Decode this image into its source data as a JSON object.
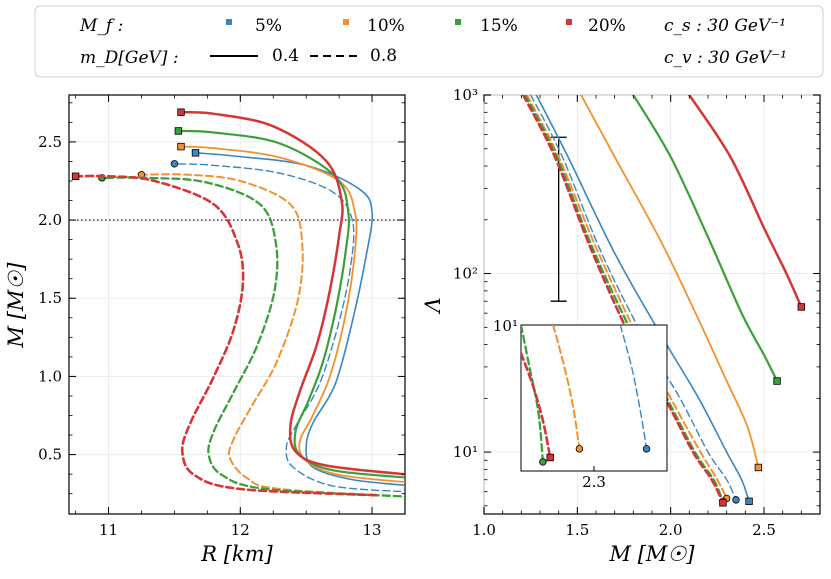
{
  "legend": {
    "mf_label": "M_f :",
    "md_label": "m_D[GeV] :",
    "mf_entries": [
      {
        "label": "5%",
        "color": "#3a86c3"
      },
      {
        "label": "10%",
        "color": "#f4912d"
      },
      {
        "label": "15%",
        "color": "#3aa13a"
      },
      {
        "label": "20%",
        "color": "#d53636"
      }
    ],
    "md_entries": [
      {
        "label": "0.4",
        "style": "solid"
      },
      {
        "label": "0.8",
        "style": "dashed"
      }
    ],
    "cs_label": "c_s : 30 GeV⁻¹",
    "cv_label": "c_v : 30 GeV⁻¹"
  },
  "chart_data": [
    {
      "type": "line",
      "xlabel": "R [km]",
      "ylabel": "M [M☉]",
      "xlim": [
        10.7,
        13.25
      ],
      "ylim": [
        0.12,
        2.8
      ],
      "xticks": [
        "11",
        "12",
        "13"
      ],
      "yticks": [
        "0.5",
        "1.0",
        "1.5",
        "2.0",
        "2.5"
      ],
      "reference_line": {
        "y": 2.0,
        "style": "dotted"
      },
      "series": [
        {
          "color": "#3a86c3",
          "style": "solid",
          "width": 1.6,
          "marker": "square",
          "points": [
            [
              13.3,
              0.3
            ],
            [
              12.85,
              0.34
            ],
            [
              12.55,
              0.42
            ],
            [
              12.5,
              0.55
            ],
            [
              12.55,
              0.7
            ],
            [
              12.72,
              0.95
            ],
            [
              12.85,
              1.35
            ],
            [
              12.95,
              1.75
            ],
            [
              13.0,
              2.05
            ],
            [
              12.9,
              2.2
            ],
            [
              12.5,
              2.35
            ],
            [
              11.95,
              2.41
            ],
            [
              11.66,
              2.43
            ]
          ]
        },
        {
          "color": "#3a86c3",
          "style": "dashed",
          "width": 1.4,
          "marker": "circle",
          "points": [
            [
              13.3,
              0.26
            ],
            [
              12.7,
              0.3
            ],
            [
              12.4,
              0.42
            ],
            [
              12.35,
              0.55
            ],
            [
              12.42,
              0.68
            ],
            [
              12.6,
              0.95
            ],
            [
              12.75,
              1.35
            ],
            [
              12.84,
              1.72
            ],
            [
              12.85,
              2.0
            ],
            [
              12.7,
              2.18
            ],
            [
              12.3,
              2.3
            ],
            [
              11.8,
              2.35
            ],
            [
              11.5,
              2.36
            ]
          ]
        },
        {
          "color": "#f4912d",
          "style": "solid",
          "width": 1.8,
          "marker": "square",
          "points": [
            [
              13.3,
              0.32
            ],
            [
              12.75,
              0.37
            ],
            [
              12.5,
              0.46
            ],
            [
              12.45,
              0.58
            ],
            [
              12.55,
              0.75
            ],
            [
              12.68,
              1.0
            ],
            [
              12.8,
              1.4
            ],
            [
              12.87,
              1.8
            ],
            [
              12.87,
              2.05
            ],
            [
              12.75,
              2.25
            ],
            [
              12.3,
              2.4
            ],
            [
              11.8,
              2.46
            ],
            [
              11.55,
              2.47
            ]
          ]
        },
        {
          "color": "#f4912d",
          "style": "dashed",
          "width": 2.0,
          "marker": "circle",
          "points": [
            [
              13.3,
              0.23
            ],
            [
              12.3,
              0.28
            ],
            [
              12.05,
              0.35
            ],
            [
              11.92,
              0.48
            ],
            [
              11.95,
              0.6
            ],
            [
              12.08,
              0.8
            ],
            [
              12.28,
              1.1
            ],
            [
              12.44,
              1.5
            ],
            [
              12.47,
              1.85
            ],
            [
              12.38,
              2.1
            ],
            [
              12.0,
              2.25
            ],
            [
              11.6,
              2.29
            ],
            [
              11.25,
              2.29
            ]
          ]
        },
        {
          "color": "#3aa13a",
          "style": "solid",
          "width": 2.2,
          "marker": "square",
          "points": [
            [
              13.3,
              0.35
            ],
            [
              12.7,
              0.4
            ],
            [
              12.45,
              0.5
            ],
            [
              12.42,
              0.65
            ],
            [
              12.52,
              0.85
            ],
            [
              12.63,
              1.1
            ],
            [
              12.73,
              1.45
            ],
            [
              12.8,
              1.8
            ],
            [
              12.82,
              2.05
            ],
            [
              12.72,
              2.28
            ],
            [
              12.3,
              2.49
            ],
            [
              11.8,
              2.56
            ],
            [
              11.53,
              2.57
            ]
          ]
        },
        {
          "color": "#3aa13a",
          "style": "dashed",
          "width": 2.3,
          "marker": "circle",
          "points": [
            [
              13.3,
              0.23
            ],
            [
              12.2,
              0.28
            ],
            [
              11.86,
              0.37
            ],
            [
              11.76,
              0.5
            ],
            [
              11.8,
              0.65
            ],
            [
              11.95,
              0.9
            ],
            [
              12.13,
              1.2
            ],
            [
              12.26,
              1.55
            ],
            [
              12.27,
              1.85
            ],
            [
              12.15,
              2.1
            ],
            [
              11.75,
              2.24
            ],
            [
              11.3,
              2.27
            ],
            [
              10.95,
              2.27
            ]
          ]
        },
        {
          "color": "#d53636",
          "style": "solid",
          "width": 2.5,
          "marker": "square",
          "points": [
            [
              13.3,
              0.37
            ],
            [
              12.65,
              0.43
            ],
            [
              12.42,
              0.52
            ],
            [
              12.38,
              0.68
            ],
            [
              12.45,
              0.9
            ],
            [
              12.58,
              1.2
            ],
            [
              12.68,
              1.55
            ],
            [
              12.75,
              1.9
            ],
            [
              12.77,
              2.12
            ],
            [
              12.65,
              2.38
            ],
            [
              12.25,
              2.6
            ],
            [
              11.8,
              2.68
            ],
            [
              11.55,
              2.69
            ]
          ]
        },
        {
          "color": "#d53636",
          "style": "dashed",
          "width": 2.6,
          "marker": "square",
          "points": [
            [
              13.03,
              0.24
            ],
            [
              12.0,
              0.28
            ],
            [
              11.65,
              0.37
            ],
            [
              11.56,
              0.52
            ],
            [
              11.62,
              0.7
            ],
            [
              11.8,
              1.0
            ],
            [
              11.95,
              1.3
            ],
            [
              12.02,
              1.6
            ],
            [
              11.98,
              1.85
            ],
            [
              11.8,
              2.1
            ],
            [
              11.35,
              2.25
            ],
            [
              11.0,
              2.28
            ],
            [
              10.75,
              2.28
            ]
          ]
        }
      ]
    },
    {
      "type": "line",
      "xlabel": "M [M☉]",
      "ylabel": "Λ",
      "xlim": [
        1.0,
        2.8
      ],
      "ylim": [
        4.5,
        1000
      ],
      "yscale": "log",
      "xticks": [
        "1.0",
        "1.5",
        "2.0",
        "2.5"
      ],
      "yticks": [
        "10¹",
        "10²",
        "10³"
      ],
      "error_bar": {
        "x": 1.4,
        "y_low": 70,
        "y_high": 580,
        "y_center": 480
      },
      "series": [
        {
          "color": "#3a86c3",
          "style": "solid",
          "width": 1.6,
          "marker": "square",
          "points": [
            [
              1.28,
              1000
            ],
            [
              1.45,
              450
            ],
            [
              1.7,
              130
            ],
            [
              1.95,
              45
            ],
            [
              2.15,
              20
            ],
            [
              2.3,
              10
            ],
            [
              2.38,
              7
            ],
            [
              2.42,
              5.3
            ]
          ]
        },
        {
          "color": "#3a86c3",
          "style": "dashed",
          "width": 1.4,
          "marker": "circle",
          "points": [
            [
              1.25,
              1000
            ],
            [
              1.42,
              450
            ],
            [
              1.63,
              130
            ],
            [
              1.85,
              45
            ],
            [
              2.05,
              20
            ],
            [
              2.2,
              10
            ],
            [
              2.3,
              7
            ],
            [
              2.35,
              5.4
            ]
          ]
        },
        {
          "color": "#f4912d",
          "style": "solid",
          "width": 1.8,
          "marker": "square",
          "points": [
            [
              1.52,
              1000
            ],
            [
              1.7,
              450
            ],
            [
              1.95,
              150
            ],
            [
              2.15,
              55
            ],
            [
              2.3,
              25
            ],
            [
              2.41,
              14
            ],
            [
              2.47,
              8.2
            ]
          ]
        },
        {
          "color": "#f4912d",
          "style": "dashed",
          "width": 2.0,
          "marker": "circle",
          "points": [
            [
              1.23,
              1000
            ],
            [
              1.4,
              450
            ],
            [
              1.6,
              140
            ],
            [
              1.82,
              45
            ],
            [
              2.0,
              20
            ],
            [
              2.16,
              10
            ],
            [
              2.25,
              7
            ],
            [
              2.3,
              5.5
            ]
          ]
        },
        {
          "color": "#3aa13a",
          "style": "solid",
          "width": 2.2,
          "marker": "square",
          "points": [
            [
              1.8,
              1000
            ],
            [
              2.0,
              450
            ],
            [
              2.2,
              160
            ],
            [
              2.38,
              60
            ],
            [
              2.5,
              35
            ],
            [
              2.57,
              25
            ]
          ]
        },
        {
          "color": "#3aa13a",
          "style": "dashed",
          "width": 2.3,
          "marker": "circle",
          "points": [
            [
              1.22,
              1000
            ],
            [
              1.39,
              450
            ],
            [
              1.58,
              140
            ],
            [
              1.8,
              45
            ],
            [
              1.98,
              20
            ],
            [
              2.13,
              10
            ],
            [
              2.23,
              7
            ],
            [
              2.28,
              5.3
            ]
          ]
        },
        {
          "color": "#d53636",
          "style": "solid",
          "width": 2.5,
          "marker": "square",
          "points": [
            [
              2.1,
              1000
            ],
            [
              2.32,
              450
            ],
            [
              2.5,
              180
            ],
            [
              2.62,
              100
            ],
            [
              2.7,
              65
            ]
          ]
        },
        {
          "color": "#d53636",
          "style": "dashed",
          "width": 2.6,
          "marker": "square",
          "points": [
            [
              1.21,
              1000
            ],
            [
              1.38,
              450
            ],
            [
              1.57,
              140
            ],
            [
              1.78,
              45
            ],
            [
              1.97,
              20
            ],
            [
              2.12,
              10
            ],
            [
              2.22,
              7
            ],
            [
              2.28,
              5.2
            ]
          ]
        }
      ],
      "inset": {
        "xlim": [
          2.25,
          2.35
        ],
        "ylim": [
          5.8,
          10
        ],
        "xtick": "2.3",
        "ytick": "10¹",
        "series": [
          {
            "color": "#3a86c3",
            "style": "dashed",
            "width": 1.4,
            "marker": "circle",
            "points": [
              [
                2.318,
                10
              ],
              [
                2.326,
                8.5
              ],
              [
                2.332,
                7.2
              ],
              [
                2.336,
                6.3
              ]
            ]
          },
          {
            "color": "#f4912d",
            "style": "dashed",
            "width": 2.0,
            "marker": "circle",
            "points": [
              [
                2.272,
                10
              ],
              [
                2.28,
                8.5
              ],
              [
                2.286,
                7.3
              ],
              [
                2.29,
                6.3
              ]
            ]
          },
          {
            "color": "#3aa13a",
            "style": "dashed",
            "width": 2.3,
            "marker": "circle",
            "points": [
              [
                2.25,
                10
              ],
              [
                2.256,
                8.5
              ],
              [
                2.262,
                7.2
              ],
              [
                2.265,
                6.0
              ]
            ]
          },
          {
            "color": "#d53636",
            "style": "dashed",
            "width": 2.6,
            "marker": "square",
            "points": [
              [
                2.25,
                9
              ],
              [
                2.258,
                8.0
              ],
              [
                2.265,
                7.0
              ],
              [
                2.27,
                6.1
              ]
            ]
          }
        ]
      }
    }
  ]
}
